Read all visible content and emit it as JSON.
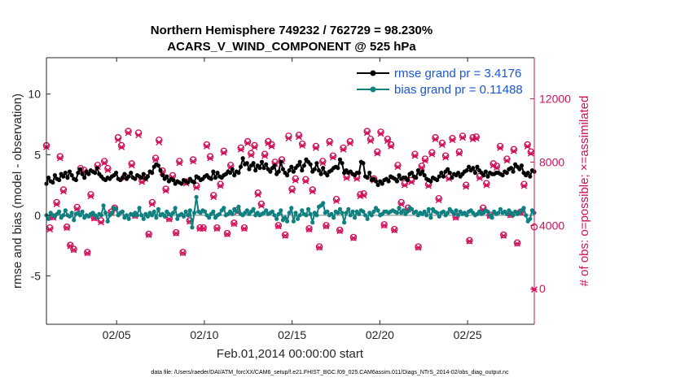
{
  "chart_data": {
    "type": "line",
    "title_line1": "Northern Hemisphere 749232 / 762729 = 98.230%",
    "title_line2": "ACARS_V_WIND_COMPONENT @ 525 hPa",
    "xlabel": "Feb.01,2014 00:00:00 start",
    "ylabel_left": "rmse and bias (model - observation)",
    "ylabel_right": "# of obs: o=possible; ×=assimilated",
    "footnote": "data file: /Users/raeder/DAI/ATM_forcXX/CAM6_setup/f.e21.FHIST_BGC.f09_025.CAM6assim.011/Diags_NTrS_2014-02/obs_diag_output.nc",
    "xlim": [
      1,
      28.8
    ],
    "ylim_left": [
      -9,
      13
    ],
    "ylim_right": [
      -2250,
      14600
    ],
    "x_ticks": [
      5,
      10,
      15,
      20,
      25
    ],
    "x_tick_labels": [
      "02/05",
      "02/10",
      "02/15",
      "02/20",
      "02/25"
    ],
    "y_ticks_left": [
      -5,
      0,
      5,
      10
    ],
    "y_ticks_right": [
      0,
      4000,
      8000,
      12000
    ],
    "y_tick_labels_left": [
      "-5",
      "0",
      "5",
      "10"
    ],
    "y_tick_labels_right": [
      "0",
      "4000",
      "8000",
      "12000"
    ],
    "legend": [
      "rmse grand pr = 3.4176",
      "bias grand pr = 0.11488"
    ],
    "colors": {
      "rmse": "#000000",
      "bias": "#0f8080",
      "obs": "#d0105a",
      "zero_line": "#9aa7a7"
    },
    "x_start": 1.0,
    "x_step": 0.25,
    "series": [
      {
        "name": "rmse",
        "axis": "left",
        "values": [
          2.6,
          3.1,
          2.8,
          2.7,
          3.3,
          3.0,
          2.9,
          3.4,
          3.2,
          3.5,
          3.1,
          3.6,
          3.3,
          3.0,
          2.9,
          3.5,
          3.8,
          3.4,
          3.1,
          3.6,
          3.4,
          3.7,
          3.6,
          3.5,
          3.9,
          3.4,
          3.2,
          3.0,
          2.9,
          3.1,
          3.0,
          3.2,
          3.3,
          3.5,
          3.0,
          2.9,
          3.1,
          3.4,
          3.0,
          3.2,
          3.5,
          3.1,
          3.0,
          3.3,
          3.2,
          3.1,
          3.4,
          3.0,
          3.2,
          3.6,
          3.5,
          4.0,
          4.2,
          4.1,
          3.7,
          3.3,
          3.0,
          3.2,
          2.8,
          3.0,
          2.9,
          2.6,
          2.8,
          2.7,
          2.6,
          2.9,
          2.8,
          2.7,
          3.0,
          2.8,
          2.7,
          3.2,
          3.1,
          2.9,
          3.0,
          3.2,
          3.3,
          3.1,
          3.0,
          3.6,
          3.1,
          3.5,
          3.2,
          3.1,
          3.3,
          3.4,
          3.6,
          3.5,
          3.8,
          3.3,
          3.6,
          3.5,
          4.0,
          4.7,
          4.2,
          4.3,
          3.8,
          4.1,
          4.3,
          3.7,
          4.1,
          3.9,
          4.4,
          3.9,
          4.2,
          3.8,
          3.6,
          3.9,
          4.1,
          3.4,
          3.6,
          4.4,
          3.8,
          3.5,
          3.3,
          3.7,
          4.0,
          3.6,
          3.9,
          4.1,
          4.4,
          3.7,
          4.1,
          4.6,
          4.4,
          4.2,
          3.6,
          3.8,
          4.3,
          3.7,
          3.4,
          3.9,
          3.5,
          3.3,
          3.6,
          3.7,
          3.9,
          4.0,
          3.9,
          4.6,
          4.3,
          3.5,
          3.7,
          3.5,
          3.6,
          3.4,
          3.3,
          3.5,
          3.5,
          4.4,
          4.3,
          3.2,
          3.1,
          3.5,
          2.9,
          3.0,
          2.8,
          2.5,
          2.8,
          2.6,
          2.9,
          3.0,
          2.8,
          3.2,
          3.1,
          3.0,
          2.8,
          3.3,
          3.0,
          3.1,
          3.1,
          2.9,
          3.4,
          3.5,
          3.2,
          3.1,
          3.7,
          3.4,
          3.6,
          3.3,
          3.0,
          2.9,
          2.8,
          3.1,
          3.0,
          2.9,
          3.2,
          3.5,
          3.2,
          3.6,
          3.8,
          3.5,
          3.1,
          3.4,
          3.3,
          3.5,
          3.2,
          3.4,
          3.6,
          3.7,
          4.0,
          3.7,
          3.9,
          3.5,
          4.0,
          3.7,
          3.5,
          3.3,
          3.6,
          3.2,
          3.5,
          3.4,
          3.4,
          3.5,
          3.5,
          3.4,
          3.3,
          3.6,
          3.5,
          3.8,
          3.9,
          3.6,
          4.2,
          4.0,
          3.8,
          4.1,
          3.5,
          3.3,
          3.5,
          3.2,
          3.7,
          3.6
        ]
      },
      {
        "name": "bias",
        "axis": "left",
        "values": [
          0.0,
          -0.3,
          0.2,
          0.0,
          -0.1,
          0.1,
          0.3,
          -0.2,
          0.0,
          0.4,
          0.0,
          -0.1,
          0.2,
          -0.4,
          0.1,
          0.2,
          0.0,
          0.3,
          -0.2,
          0.0,
          -0.1,
          0.1,
          0.2,
          0.0,
          -0.2,
          0.1,
          0.0,
          0.8,
          0.2,
          -0.5,
          0.0,
          0.2,
          0.6,
          0.5,
          0.0,
          0.2,
          0.3,
          -0.2,
          0.0,
          -0.3,
          0.1,
          0.0,
          0.2,
          0.0,
          0.6,
          0.0,
          -0.3,
          0.1,
          -0.1,
          0.2,
          0.0,
          0.3,
          -0.2,
          0.5,
          0.0,
          0.1,
          -0.1,
          0.3,
          0.1,
          0.0,
          0.2,
          0.6,
          -0.3,
          0.0,
          0.1,
          -0.1,
          0.3,
          0.0,
          0.4,
          -1.0,
          0.2,
          1.5,
          0.3,
          0.2,
          0.4,
          0.3,
          0.0,
          -0.2,
          0.1,
          0.3,
          -0.2,
          0.0,
          0.1,
          0.4,
          0.6,
          0.0,
          0.1,
          0.3,
          0.1,
          0.5,
          0.3,
          0.7,
          0.1,
          0.0,
          0.2,
          0.4,
          0.1,
          0.3,
          0.5,
          0.0,
          0.2,
          0.0,
          0.1,
          0.2,
          0.4,
          0.1,
          0.2,
          0.3,
          0.0,
          -0.3,
          0.1,
          0.4,
          -0.4,
          -0.2,
          -0.5,
          0.2,
          0.6,
          -0.5,
          0.2,
          -0.3,
          0.0,
          0.4,
          0.1,
          0.0,
          0.5,
          0.1,
          -0.6,
          0.2,
          0.0,
          0.7,
          0.8,
          1.0,
          0.2,
          0.3,
          0.0,
          0.1,
          -0.2,
          0.3,
          0.2,
          0.5,
          0.2,
          -0.6,
          0.2,
          0.5,
          0.0,
          0.3,
          -0.2,
          0.3,
          0.1,
          0.4,
          0.3,
          0.0,
          -0.3,
          0.2,
          0.0,
          0.3,
          0.6,
          0.4,
          0.0,
          0.1,
          0.3,
          0.3,
          0.2,
          0.3,
          0.4,
          0.3,
          0.2,
          0.6,
          0.2,
          0.4,
          0.1,
          0.3,
          0.6,
          0.5,
          0.2,
          0.3,
          0.0,
          0.2,
          0.1,
          0.3,
          0.0,
          0.5,
          -0.2,
          0.5,
          0.3,
          0.2,
          -0.1,
          0.2,
          0.3,
          0.0,
          0.2,
          0.5,
          0.3,
          0.1,
          0.4,
          0.0,
          0.3,
          0.1,
          0.2,
          0.0,
          0.3,
          0.4,
          0.2,
          0.0,
          0.1,
          0.3,
          0.1,
          0.2,
          0.4,
          0.3,
          0.0,
          -0.2,
          0.3,
          0.1,
          0.2,
          0.5,
          0.2,
          0.3,
          0.1,
          0.4,
          0.2,
          0.0,
          0.3,
          0.1,
          0.2,
          0.4,
          0.6,
          0.0,
          -0.5,
          -0.3,
          0.4,
          0.2
        ]
      },
      {
        "name": "obs_possible",
        "axis": "right",
        "values": [
          9050,
          3850,
          4550,
          5450,
          8350,
          6250,
          3900,
          2750,
          2500,
          5150,
          7600,
          7500,
          2300,
          5950,
          4500,
          7800,
          4300,
          8050,
          7600,
          4850,
          5100,
          9550,
          9050,
          7100,
          9950,
          7900,
          4650,
          9850,
          6850,
          7050,
          3450,
          5450,
          8250,
          9400,
          7450,
          6300,
          4450,
          7150,
          3550,
          8050,
          2300,
          6750,
          4300,
          8150,
          6500,
          3850,
          3850,
          9100,
          8350,
          5900,
          3850,
          6600,
          8700,
          3500,
          7800,
          4150,
          4950,
          8900,
          3850,
          9300,
          8550,
          9050,
          6050,
          5350,
          8500,
          9300,
          9100,
          8000,
          4000,
          8150,
          3400,
          9650,
          6300,
          6950,
          9700,
          9150,
          6900,
          3800,
          6250,
          9000,
          2650,
          8050,
          4000,
          9300,
          8400,
          5650,
          3700,
          8900,
          7100,
          9300,
          3250,
          7050,
          5950,
          6000,
          9950,
          9450,
          6950,
          8650,
          9900,
          4050,
          9450,
          9100,
          3750,
          7800,
          5450,
          6650,
          5100,
          6850,
          8500,
          2650,
          7750,
          8200,
          6600,
          8600,
          9550,
          5700,
          9200,
          8400,
          7050,
          9500,
          4550,
          8650,
          9650,
          6550,
          3050,
          9550,
          9600,
          7100,
          5100,
          6650,
          4650,
          7900,
          7750,
          9000,
          3400,
          8200,
          4700,
          8800,
          2900,
          4850,
          6600,
          9100,
          8650,
          3900
        ]
      },
      {
        "name": "obs_assimilated",
        "axis": "right",
        "values": [
          8950,
          3750,
          4500,
          5350,
          8250,
          6150,
          3850,
          2700,
          2450,
          5050,
          7500,
          7400,
          2250,
          5850,
          4450,
          7700,
          4200,
          7950,
          7500,
          4800,
          5050,
          9400,
          8950,
          7000,
          9850,
          7800,
          4600,
          9700,
          6750,
          6950,
          3400,
          5350,
          8150,
          9250,
          7350,
          6200,
          4400,
          7050,
          3500,
          7950,
          2250,
          6650,
          4250,
          8050,
          6400,
          3800,
          3800,
          9000,
          8250,
          5800,
          3800,
          6500,
          8600,
          3450,
          7700,
          4100,
          4850,
          8800,
          3800,
          9200,
          8450,
          8950,
          5950,
          5250,
          8400,
          9200,
          9000,
          7900,
          3950,
          8050,
          3350,
          9500,
          6200,
          6850,
          9600,
          9050,
          6800,
          3750,
          6150,
          8900,
          2600,
          7950,
          3950,
          9200,
          8300,
          5550,
          3650,
          8800,
          7000,
          9200,
          3200,
          6950,
          5850,
          5900,
          9850,
          9350,
          6850,
          8550,
          9800,
          4000,
          9350,
          9000,
          3700,
          7700,
          5350,
          6550,
          5000,
          6750,
          8400,
          2600,
          7650,
          8100,
          6500,
          8500,
          9450,
          5600,
          9100,
          8300,
          6950,
          9400,
          4500,
          8550,
          9550,
          6450,
          3000,
          9450,
          9500,
          7000,
          5000,
          6550,
          4600,
          7800,
          7650,
          8900,
          3350,
          8100,
          4650,
          8700,
          2850,
          4800,
          6500,
          9000,
          8550,
          -50
        ]
      }
    ]
  }
}
